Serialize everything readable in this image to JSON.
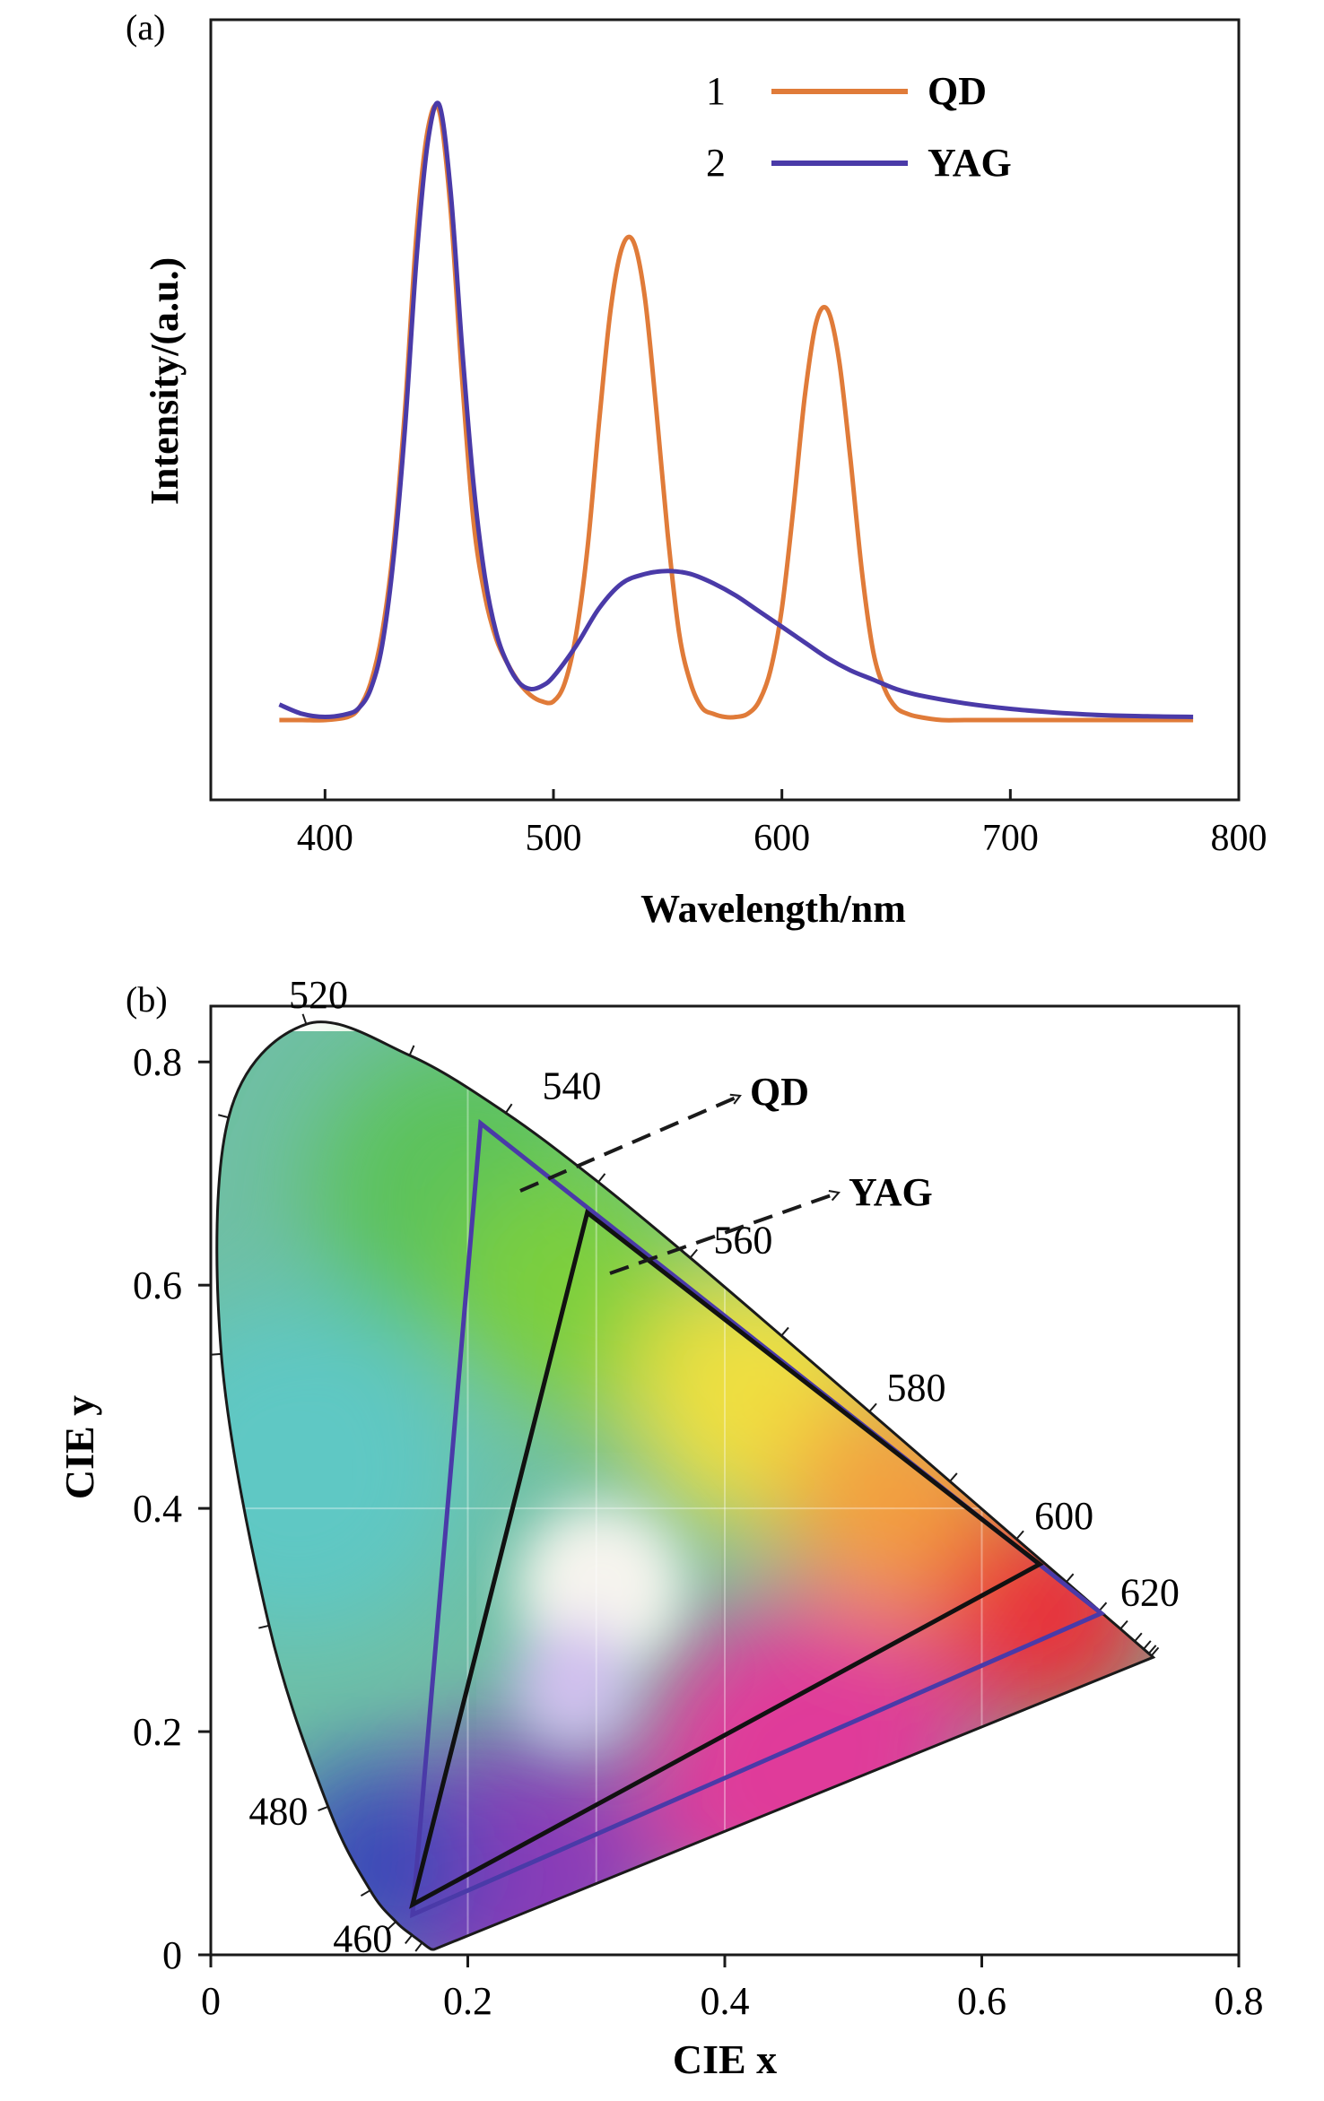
{
  "panel_a": {
    "label": "(a)",
    "legend": [
      {
        "num": "1",
        "name": "QD",
        "color": "#e07b39"
      },
      {
        "num": "2",
        "name": "YAG",
        "color": "#4a3aa8"
      }
    ]
  },
  "panel_b": {
    "label": "(b)",
    "arrow_labels": {
      "qd": "QD",
      "yag": "YAG"
    }
  },
  "chart_data": [
    {
      "type": "line",
      "xlabel": "Wavelength/nm",
      "ylabel": "Intensity/(a.u.)",
      "xlim": [
        350,
        800
      ],
      "ylim": [
        0,
        1.08
      ],
      "xticks": [
        400,
        500,
        600,
        700,
        800
      ],
      "yticks_shown": false,
      "grid": false,
      "legend_position": "top-right",
      "series": [
        {
          "name": "QD",
          "legend_number": "1",
          "color": "#e07b39",
          "x": [
            380,
            390,
            400,
            410,
            415,
            420,
            425,
            430,
            435,
            440,
            445,
            450,
            455,
            460,
            465,
            470,
            475,
            480,
            485,
            490,
            495,
            500,
            505,
            510,
            515,
            520,
            525,
            530,
            535,
            540,
            545,
            550,
            555,
            560,
            565,
            570,
            575,
            580,
            585,
            590,
            595,
            600,
            605,
            610,
            615,
            620,
            625,
            630,
            635,
            640,
            645,
            650,
            655,
            660,
            670,
            680,
            700,
            740,
            780
          ],
          "y": [
            0.0,
            0.0,
            0.0,
            0.005,
            0.02,
            0.06,
            0.14,
            0.28,
            0.5,
            0.78,
            0.95,
            0.98,
            0.82,
            0.55,
            0.32,
            0.2,
            0.13,
            0.09,
            0.06,
            0.04,
            0.03,
            0.03,
            0.06,
            0.14,
            0.28,
            0.48,
            0.66,
            0.76,
            0.77,
            0.68,
            0.5,
            0.3,
            0.14,
            0.06,
            0.02,
            0.01,
            0.005,
            0.005,
            0.01,
            0.03,
            0.08,
            0.18,
            0.34,
            0.52,
            0.64,
            0.66,
            0.58,
            0.42,
            0.24,
            0.11,
            0.05,
            0.02,
            0.01,
            0.005,
            0.0,
            0.0,
            0.0,
            0.0,
            0.0
          ]
        },
        {
          "name": "YAG",
          "legend_number": "2",
          "color": "#4a3aa8",
          "x": [
            380,
            390,
            400,
            410,
            415,
            420,
            425,
            430,
            435,
            440,
            445,
            450,
            455,
            460,
            465,
            470,
            475,
            480,
            485,
            490,
            495,
            500,
            510,
            520,
            530,
            540,
            550,
            560,
            570,
            580,
            590,
            600,
            610,
            620,
            630,
            640,
            650,
            660,
            680,
            700,
            720,
            740,
            760,
            780
          ],
          "y": [
            0.025,
            0.01,
            0.005,
            0.01,
            0.02,
            0.05,
            0.12,
            0.26,
            0.47,
            0.74,
            0.93,
            0.99,
            0.85,
            0.6,
            0.38,
            0.23,
            0.14,
            0.09,
            0.06,
            0.05,
            0.055,
            0.07,
            0.12,
            0.18,
            0.22,
            0.235,
            0.24,
            0.235,
            0.22,
            0.2,
            0.175,
            0.15,
            0.125,
            0.1,
            0.08,
            0.065,
            0.05,
            0.04,
            0.027,
            0.018,
            0.012,
            0.008,
            0.006,
            0.005
          ]
        }
      ]
    },
    {
      "type": "scatter",
      "xlabel": "CIE x",
      "ylabel": "CIE y",
      "xlim": [
        0,
        0.8
      ],
      "ylim": [
        0,
        0.85
      ],
      "xticks": [
        0,
        0.2,
        0.4,
        0.6,
        0.8
      ],
      "yticks": [
        0,
        0.2,
        0.4,
        0.6,
        0.8
      ],
      "wavelength_labels": [
        {
          "nm": "460",
          "x": 0.144,
          "y": 0.03
        },
        {
          "nm": "480",
          "x": 0.091,
          "y": 0.133
        },
        {
          "nm": "520",
          "x": 0.074,
          "y": 0.834
        },
        {
          "nm": "540",
          "x": 0.23,
          "y": 0.754
        },
        {
          "nm": "560",
          "x": 0.373,
          "y": 0.624
        },
        {
          "nm": "580",
          "x": 0.512,
          "y": 0.487
        },
        {
          "nm": "600",
          "x": 0.627,
          "y": 0.372
        },
        {
          "nm": "620",
          "x": 0.691,
          "y": 0.308
        }
      ],
      "gamut_triangles": [
        {
          "name": "QD",
          "color": "#4a3aa8",
          "vertices": [
            [
              0.21,
              0.745
            ],
            [
              0.693,
              0.306
            ],
            [
              0.157,
              0.036
            ]
          ]
        },
        {
          "name": "YAG",
          "color": "#111111",
          "vertices": [
            [
              0.293,
              0.665
            ],
            [
              0.645,
              0.35
            ],
            [
              0.157,
              0.045
            ]
          ]
        }
      ]
    }
  ]
}
